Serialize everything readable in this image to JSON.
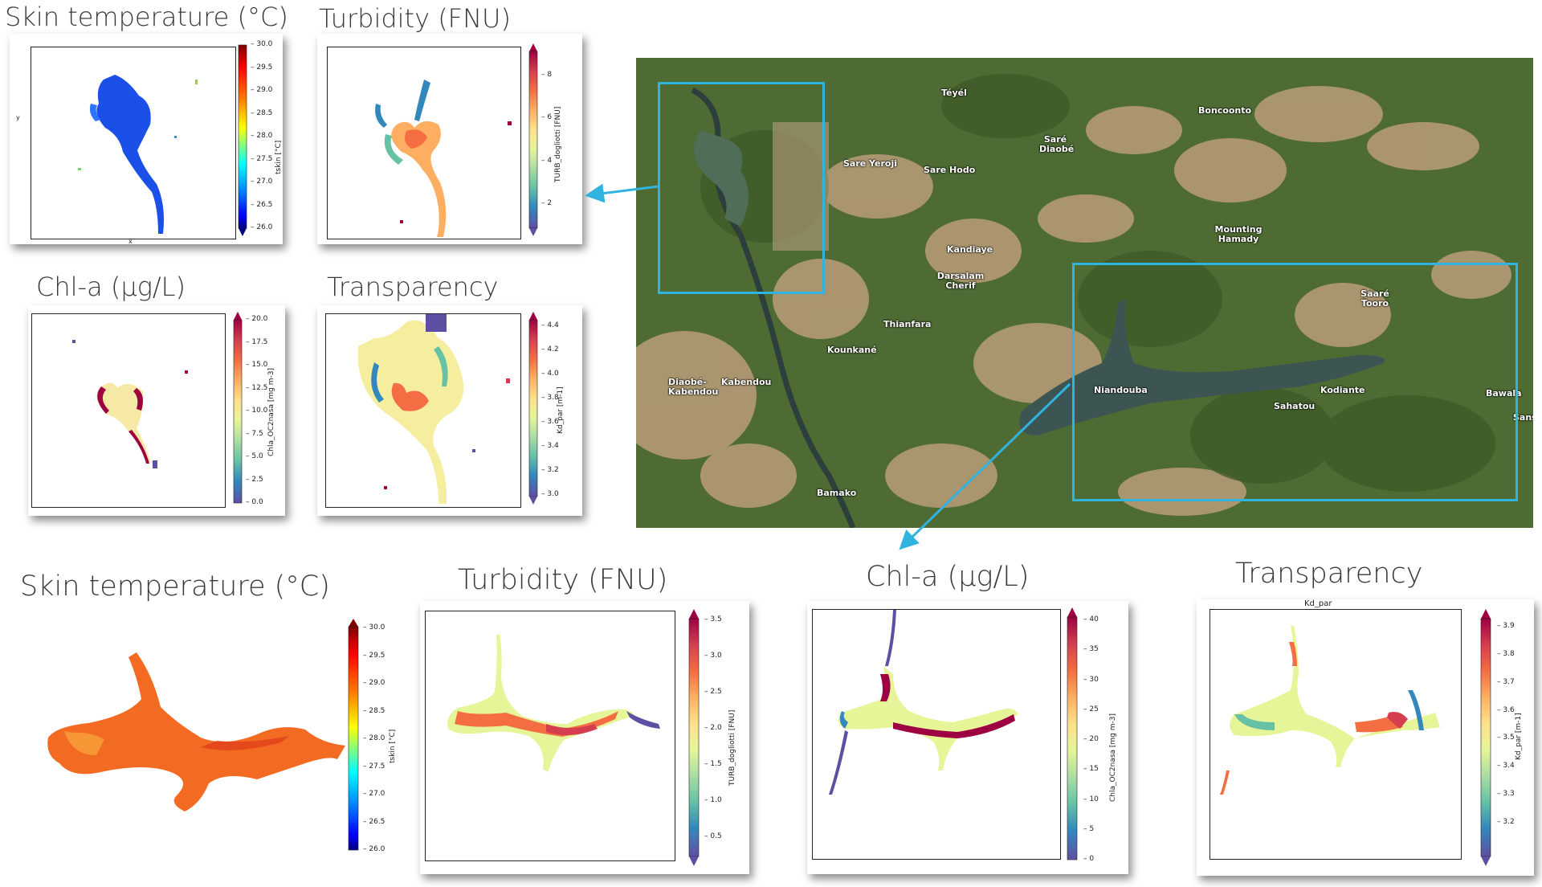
{
  "headings": {
    "top_skin": "Skin temperature (°C)",
    "top_turb": "Turbidity (FNU)",
    "top_chl": "Chl-a (µg/L)",
    "top_trans": "Transparency",
    "bot_skin": "Skin temperature (°C)",
    "bot_turb": "Turbidity (FNU)",
    "bot_chl": "Chl-a (µg/L)",
    "bot_trans": "Transparency"
  },
  "top_skin": {
    "ticks": [
      "30.0",
      "29.5",
      "29.0",
      "28.5",
      "28.0",
      "27.5",
      "27.0",
      "26.5",
      "26.0"
    ],
    "label": "tskin [°C]",
    "axis_y": "y",
    "axis_x": "x",
    "colormap": [
      "#9e0142",
      "#d53e4f",
      "#f46d43",
      "#fdae61",
      "#fee08b",
      "#e6f598",
      "#abdda4",
      "#66c2a5",
      "#3288bd",
      "#0000c8"
    ]
  },
  "top_turb": {
    "ticks": [
      "8",
      "6",
      "4",
      "2"
    ],
    "label": "TURB_dogliotti [FNU]"
  },
  "top_chl": {
    "ticks": [
      "20.0",
      "17.5",
      "15.0",
      "12.5",
      "10.0",
      "7.5",
      "5.0",
      "2.5",
      "0.0"
    ],
    "label": "Chla_OC2nasa [mg m-3]"
  },
  "top_trans": {
    "ticks": [
      "4.4",
      "4.2",
      "4.0",
      "3.8",
      "3.6",
      "3.4",
      "3.2",
      "3.0"
    ],
    "label": "Kd_par [m-1]"
  },
  "bot_skin": {
    "ticks": [
      "30.0",
      "29.5",
      "29.0",
      "28.5",
      "28.0",
      "27.5",
      "27.0",
      "26.5",
      "26.0"
    ],
    "label": "tskin [°C]"
  },
  "bot_turb": {
    "ticks": [
      "3.5",
      "3.0",
      "2.5",
      "2.0",
      "1.5",
      "1.0",
      "0.5"
    ],
    "label": "TURB_dogliotti [FNU]"
  },
  "bot_chl": {
    "ticks": [
      "40",
      "35",
      "30",
      "25",
      "20",
      "15",
      "10",
      "5",
      "0"
    ],
    "label": "Chla_OC2nasa [mg m-3]"
  },
  "bot_trans": {
    "ticks": [
      "3.9",
      "3.8",
      "3.7",
      "3.6",
      "3.5",
      "3.4",
      "3.3",
      "3.2"
    ],
    "label": "Kd_par [m-1]",
    "subtitle": "Kd_par"
  },
  "map": {
    "places": [
      "Téyél",
      "Boncoonto",
      "Saré Diaobé",
      "Sare Yeroji",
      "Sare Hodo",
      "Kandiaye",
      "Mounting Hamady",
      "Darsalam Cherif",
      "Thianfara",
      "Kounkané",
      "Saaré Tooro",
      "Diaobé- Kabendou",
      "Kabendou",
      "Niandouba",
      "Sahatou",
      "Kodiante",
      "Bawala",
      "Sans",
      "Bamako"
    ]
  },
  "colors": {
    "accent": "#31b3e0",
    "spectral": [
      "#9e0142",
      "#d53e4f",
      "#f46d43",
      "#fdae61",
      "#fee08b",
      "#e6f598",
      "#abdda4",
      "#66c2a5",
      "#3288bd",
      "#5e4fa2"
    ],
    "jet": [
      "#800000",
      "#ff0000",
      "#ff8000",
      "#ffff00",
      "#80ff80",
      "#00ffff",
      "#0080ff",
      "#0000ff",
      "#000080"
    ]
  }
}
